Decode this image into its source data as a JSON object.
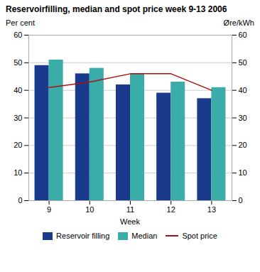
{
  "chart_data": {
    "type": "bar",
    "title": "Reservoirfilling, median and spot price week 9-13 2006",
    "categories": [
      "9",
      "10",
      "11",
      "12",
      "13"
    ],
    "xlabel": "Week",
    "ylabel": "Per cent",
    "y2label": "Øre/kWh",
    "series": [
      {
        "name": "Reservoir filling",
        "type": "bar",
        "color": "#1a3a8c",
        "values": [
          49,
          46,
          42,
          39,
          37
        ]
      },
      {
        "name": "Median",
        "type": "bar",
        "color": "#3aada8",
        "values": [
          51,
          48,
          46,
          43,
          41
        ]
      },
      {
        "name": "Spot price",
        "type": "line",
        "color": "#aa1111",
        "axis": "y2",
        "values": [
          41,
          43,
          46,
          46,
          40
        ]
      }
    ],
    "ylim": [
      0,
      60
    ],
    "yticks": [
      0,
      10,
      20,
      30,
      40,
      50,
      60
    ],
    "y2lim": [
      0,
      60
    ],
    "y2ticks": [
      0,
      10,
      20,
      30,
      40,
      50,
      60
    ],
    "grid": true,
    "legend": "bottom"
  }
}
